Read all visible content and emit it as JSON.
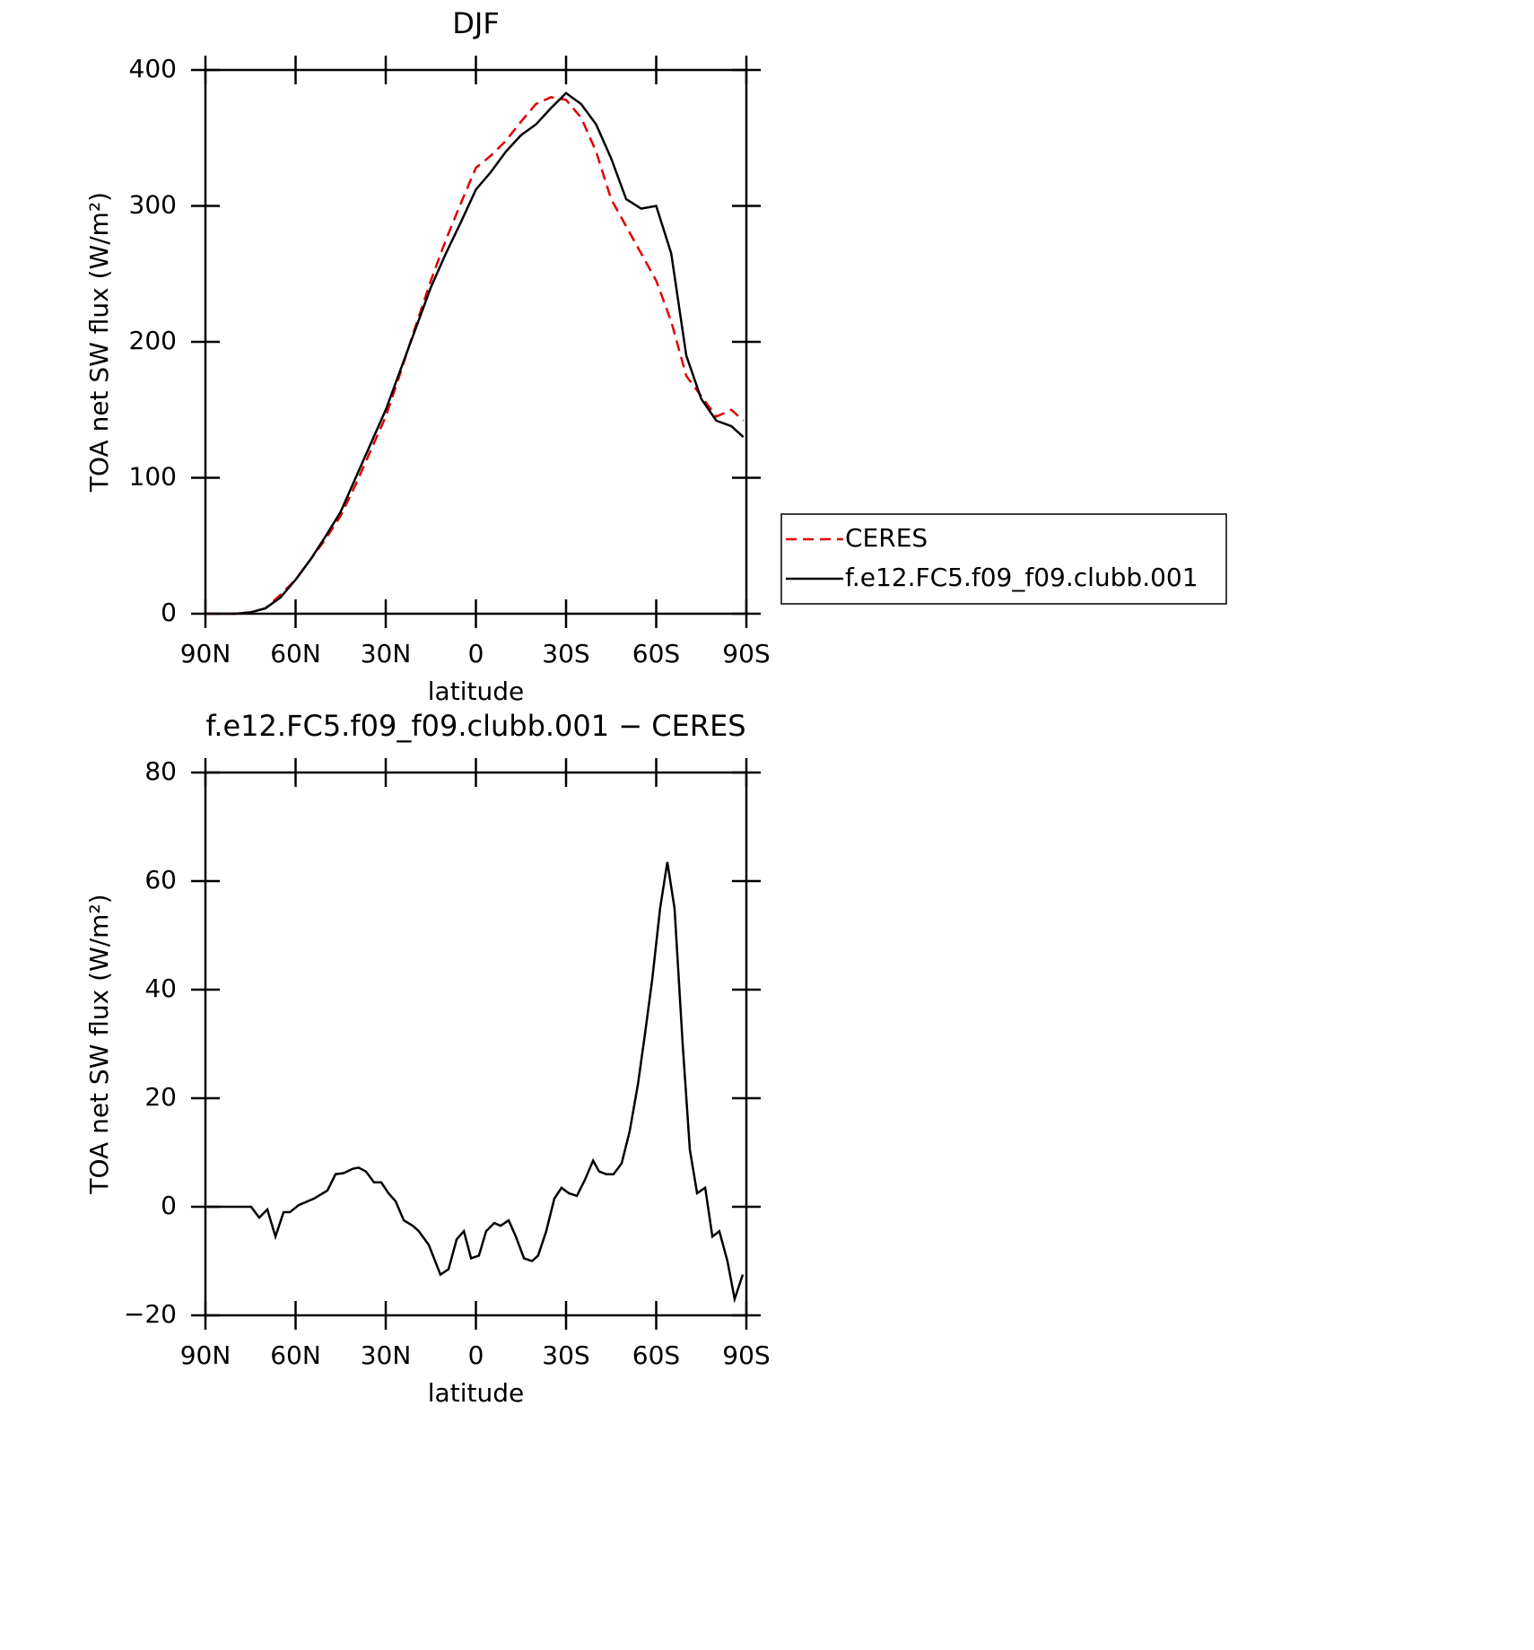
{
  "chart_data": [
    {
      "type": "line",
      "title": "DJF",
      "xlabel": "latitude",
      "ylabel": "TOA net SW flux (W/m²)",
      "xlim": [
        90,
        -90
      ],
      "xticks": [
        {
          "value": 90,
          "label": "90N"
        },
        {
          "value": 60,
          "label": "60N"
        },
        {
          "value": 30,
          "label": "30N"
        },
        0,
        {
          "value": -30,
          "label": "30S"
        },
        {
          "value": -60,
          "label": "60S"
        },
        {
          "value": -90,
          "label": "90S"
        }
      ],
      "ylim": [
        0,
        400
      ],
      "yticks": [
        0,
        100,
        200,
        300,
        400
      ],
      "legend": "right",
      "x": [
        89,
        85,
        80,
        75,
        70,
        65,
        60,
        55,
        50,
        45,
        40,
        35,
        30,
        25,
        20,
        15,
        10,
        5,
        0,
        -5,
        -10,
        -15,
        -20,
        -25,
        -30,
        -35,
        -40,
        -45,
        -50,
        -55,
        -60,
        -65,
        -70,
        -75,
        -80,
        -85,
        -89
      ],
      "series": [
        {
          "name": "CERES",
          "color": "#e00000",
          "style": "dashed",
          "values": [
            0,
            0,
            0,
            1,
            4,
            14,
            25,
            40,
            55,
            72,
            95,
            120,
            145,
            178,
            212,
            245,
            275,
            302,
            328,
            337,
            348,
            362,
            375,
            380,
            378,
            365,
            340,
            305,
            285,
            265,
            245,
            215,
            175,
            160,
            145,
            150,
            142
          ]
        },
        {
          "name": "f.e12.FC5.f09_f09.clubb.001",
          "color": "#000000",
          "style": "solid",
          "values": [
            0,
            0,
            0,
            1,
            4,
            12,
            25,
            40,
            57,
            75,
            100,
            125,
            150,
            180,
            210,
            240,
            265,
            288,
            312,
            325,
            340,
            352,
            360,
            372,
            383,
            375,
            360,
            335,
            305,
            298,
            300,
            265,
            190,
            158,
            142,
            138,
            130
          ]
        }
      ]
    },
    {
      "type": "line",
      "title": "f.e12.FC5.f09_f09.clubb.001 − CERES",
      "xlabel": "latitude",
      "ylabel": "TOA net SW flux (W/m²)",
      "xlim": [
        90,
        -90
      ],
      "xticks": [
        {
          "value": 90,
          "label": "90N"
        },
        {
          "value": 60,
          "label": "60N"
        },
        {
          "value": 30,
          "label": "30N"
        },
        0,
        {
          "value": -30,
          "label": "30S"
        },
        {
          "value": -60,
          "label": "60S"
        },
        {
          "value": -90,
          "label": "90S"
        }
      ],
      "ylim": [
        -20,
        80
      ],
      "yticks": [
        {
          "value": -20,
          "label": "−20"
        },
        0,
        20,
        40,
        60,
        80
      ],
      "color": "#000000",
      "x": [
        89.1,
        74.8,
        72.1,
        69.4,
        66.7,
        64,
        61.9,
        59,
        56,
        53.9,
        49.4,
        46.7,
        44,
        41,
        39,
        36.6,
        33.9,
        31.5,
        29.1,
        26.7,
        24,
        21,
        19,
        15.7,
        11.8,
        9.1,
        6.4,
        4,
        1.6,
        -1,
        -3.4,
        -6.1,
        -8.2,
        -10.9,
        -13.3,
        -16,
        -18.7,
        -20.7,
        -23.4,
        -26.1,
        -28.5,
        -30.9,
        -33.6,
        -36.3,
        -39,
        -41,
        -43.4,
        -45.8,
        -48.5,
        -51.2,
        -53.9,
        -56.3,
        -58.7,
        -61.3,
        -63.7,
        -66.1,
        -68.8,
        -71.2,
        -73.6,
        -76.3,
        -78.7,
        -81,
        -83.7,
        -86.1,
        -88.8
      ],
      "values": [
        0,
        0,
        -2,
        -0.5,
        -5.5,
        -1,
        -1,
        0.3,
        1,
        1.5,
        3,
        6,
        6.2,
        7,
        7.2,
        6.5,
        4.5,
        4.5,
        2.5,
        1,
        -2.5,
        -3.5,
        -4.5,
        -7,
        -12.5,
        -11.5,
        -6,
        -4.5,
        -9.5,
        -9,
        -4.5,
        -3,
        -3.5,
        -2.5,
        -5.5,
        -9.5,
        -10,
        -9,
        -4.5,
        1.5,
        3.5,
        2.5,
        2,
        5,
        8.5,
        6.5,
        6,
        6,
        8,
        14,
        22.5,
        32,
        42,
        55,
        63.5,
        55,
        30,
        10.5,
        2.5,
        3.5,
        -5.5,
        -4.5,
        -10,
        -17,
        -12.5
      ]
    }
  ]
}
